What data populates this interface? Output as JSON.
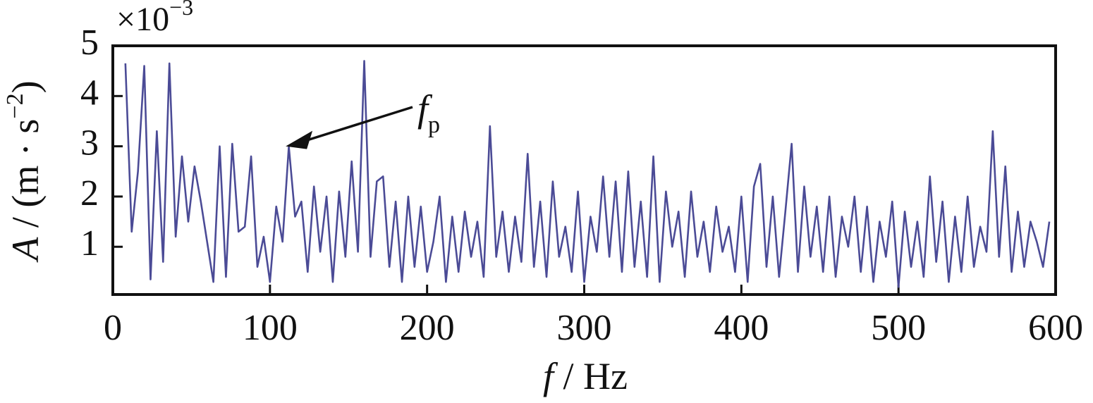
{
  "chart_data": {
    "type": "line",
    "multiplier": [
      "×10",
      "−3"
    ],
    "xlabel": [
      "f",
      " / Hz"
    ],
    "ylabel": [
      "A",
      " / (m · s",
      "−2",
      ")"
    ],
    "annotation": [
      "f",
      "p"
    ],
    "annotation_x": 110,
    "annotation_y": 3.0,
    "xlim": [
      0,
      600
    ],
    "xticks": [
      0,
      100,
      200,
      300,
      400,
      500,
      600
    ],
    "ylim": [
      0.05,
      5
    ],
    "yticks": [
      1,
      2,
      3,
      4,
      5
    ],
    "x": [
      8,
      12,
      16,
      20,
      24,
      28,
      32,
      36,
      40,
      44,
      48,
      52,
      56,
      60,
      64,
      68,
      72,
      76,
      80,
      84,
      88,
      92,
      96,
      100,
      104,
      108,
      112,
      116,
      120,
      124,
      128,
      132,
      136,
      140,
      144,
      148,
      152,
      156,
      160,
      164,
      168,
      172,
      176,
      180,
      184,
      188,
      192,
      196,
      200,
      204,
      208,
      212,
      216,
      220,
      224,
      228,
      232,
      236,
      240,
      244,
      248,
      252,
      256,
      260,
      264,
      268,
      272,
      276,
      280,
      284,
      288,
      292,
      296,
      300,
      304,
      308,
      312,
      316,
      320,
      324,
      328,
      332,
      336,
      340,
      344,
      348,
      352,
      356,
      360,
      364,
      368,
      372,
      376,
      380,
      384,
      388,
      392,
      396,
      400,
      404,
      408,
      412,
      416,
      420,
      424,
      428,
      432,
      436,
      440,
      444,
      448,
      452,
      456,
      460,
      464,
      468,
      472,
      476,
      480,
      484,
      488,
      492,
      496,
      500,
      504,
      508,
      512,
      516,
      520,
      524,
      528,
      532,
      536,
      540,
      544,
      548,
      552,
      556,
      560,
      564,
      568,
      572,
      576,
      580,
      584,
      588,
      592,
      596
    ],
    "series": [
      {
        "color": "#4b4b96",
        "values": [
          4.65,
          1.3,
          2.5,
          4.6,
          0.35,
          3.3,
          0.7,
          4.65,
          1.2,
          2.8,
          1.5,
          2.6,
          1.9,
          1.1,
          0.3,
          3.0,
          0.4,
          3.05,
          1.3,
          1.4,
          2.8,
          0.6,
          1.2,
          0.3,
          1.8,
          1.1,
          3.0,
          1.6,
          1.9,
          0.5,
          2.2,
          0.9,
          2.0,
          0.3,
          2.1,
          0.8,
          2.7,
          0.9,
          4.7,
          0.8,
          2.3,
          2.4,
          0.6,
          1.9,
          0.3,
          2.0,
          0.6,
          1.8,
          0.5,
          1.1,
          2.0,
          0.3,
          1.6,
          0.5,
          1.7,
          0.8,
          1.5,
          0.4,
          3.4,
          0.8,
          1.7,
          0.5,
          1.6,
          0.7,
          2.85,
          0.6,
          1.9,
          0.4,
          2.3,
          0.8,
          1.4,
          0.5,
          2.1,
          0.3,
          1.6,
          0.9,
          2.4,
          0.8,
          2.3,
          0.5,
          2.5,
          0.6,
          1.9,
          0.4,
          2.8,
          0.3,
          2.1,
          1.0,
          1.7,
          0.4,
          2.1,
          0.8,
          1.5,
          0.5,
          1.8,
          0.9,
          1.4,
          0.5,
          2.0,
          0.3,
          2.2,
          2.65,
          0.6,
          2.0,
          0.4,
          1.7,
          3.05,
          0.5,
          2.2,
          0.8,
          1.8,
          0.5,
          2.0,
          0.4,
          1.6,
          1.0,
          2.0,
          0.5,
          1.8,
          0.3,
          1.5,
          0.8,
          1.9,
          0.2,
          1.7,
          0.6,
          1.5,
          0.4,
          2.4,
          0.7,
          1.9,
          0.3,
          1.6,
          0.5,
          2.0,
          0.6,
          1.4,
          0.9,
          3.3,
          0.8,
          2.6,
          0.5,
          1.7,
          0.6,
          1.5,
          1.1,
          0.6,
          1.5
        ]
      }
    ]
  }
}
